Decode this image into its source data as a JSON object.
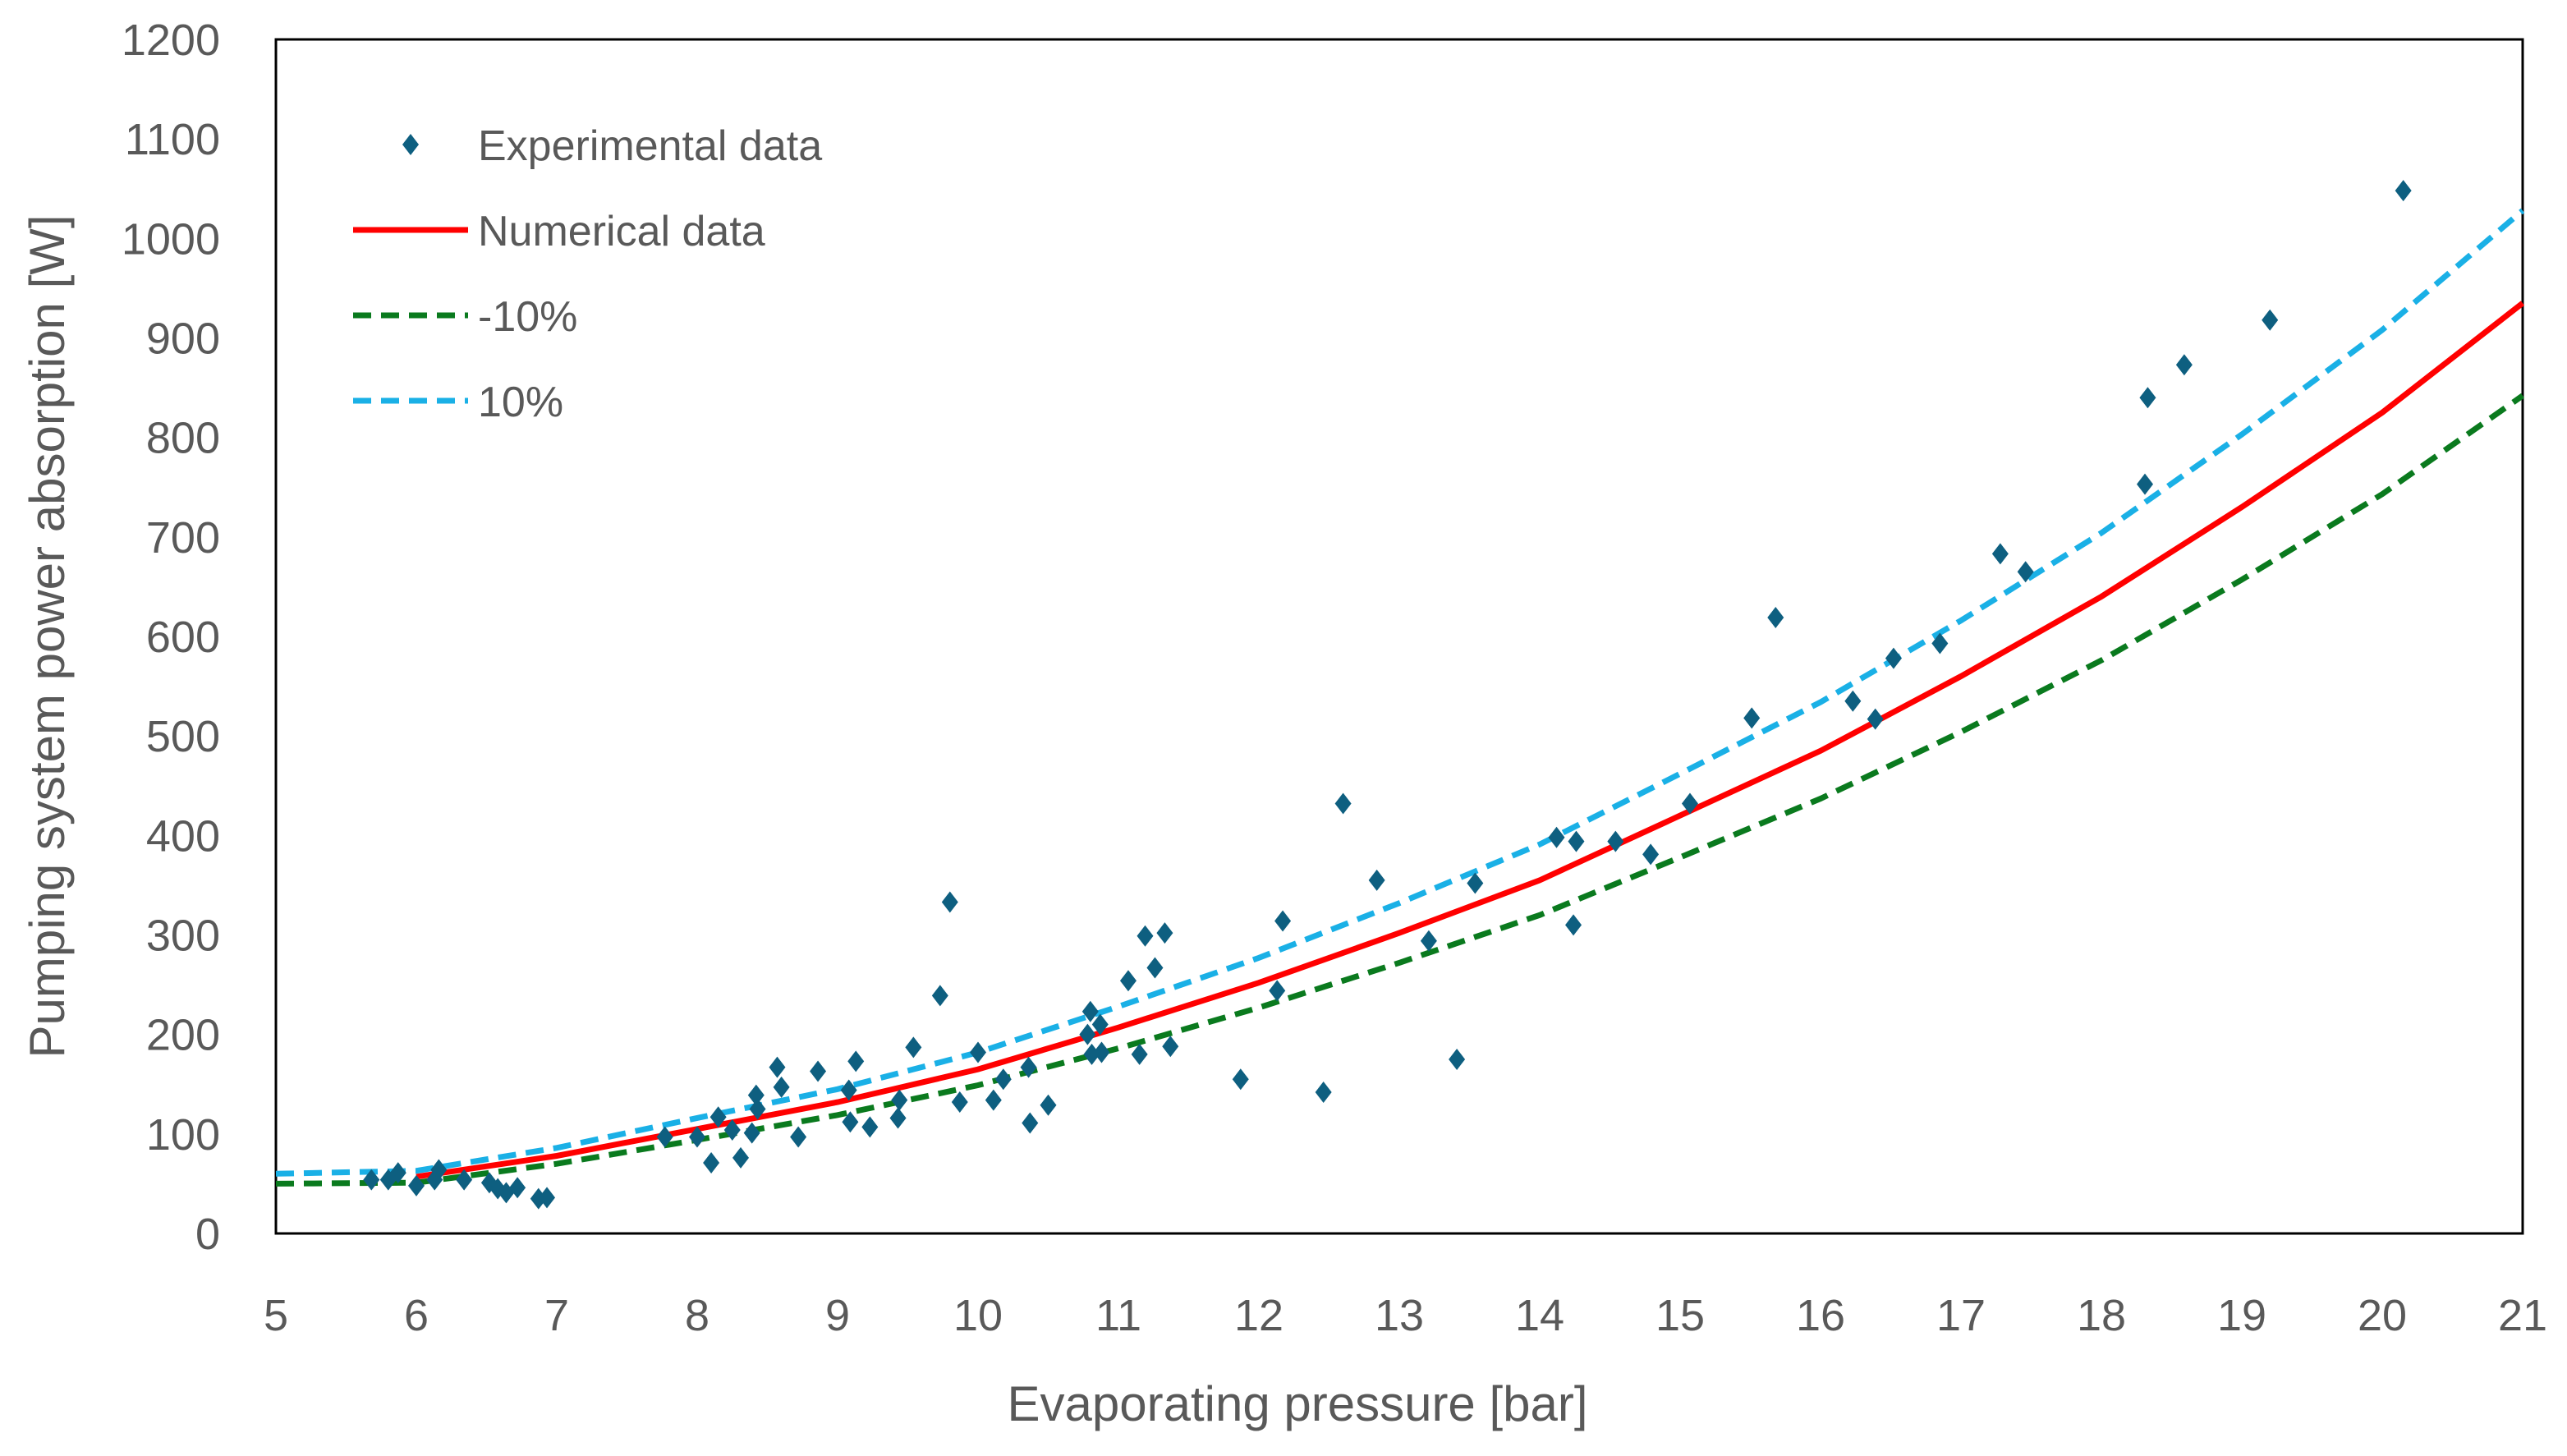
{
  "chart_data": {
    "type": "scatter",
    "title": "",
    "xlabel": "Evaporating pressure [bar]",
    "ylabel": "Pumping system power absorption [W]",
    "xlim": [
      5,
      21
    ],
    "ylim": [
      0,
      1200
    ],
    "xticks": [
      5,
      6,
      7,
      8,
      9,
      10,
      11,
      12,
      13,
      14,
      15,
      16,
      17,
      18,
      19,
      20,
      21
    ],
    "yticks": [
      0,
      100,
      200,
      300,
      400,
      500,
      600,
      700,
      800,
      900,
      1000,
      1100,
      1200
    ],
    "grid": false,
    "legend_placement": "top-left",
    "series": [
      {
        "name": "Experimental data",
        "kind": "scatter",
        "marker": "diamond",
        "color": "#0e5f80",
        "points": [
          [
            5.68,
            54
          ],
          [
            5.8,
            54
          ],
          [
            5.87,
            61
          ],
          [
            6.0,
            48
          ],
          [
            6.13,
            54
          ],
          [
            6.16,
            64
          ],
          [
            6.34,
            54
          ],
          [
            6.52,
            51
          ],
          [
            6.58,
            45
          ],
          [
            6.64,
            41
          ],
          [
            6.72,
            46
          ],
          [
            6.87,
            35
          ],
          [
            6.93,
            36
          ],
          [
            7.77,
            97
          ],
          [
            8.0,
            97
          ],
          [
            8.1,
            71
          ],
          [
            8.15,
            117
          ],
          [
            8.25,
            104
          ],
          [
            8.31,
            76
          ],
          [
            8.42,
            139
          ],
          [
            8.43,
            125
          ],
          [
            8.39,
            101
          ],
          [
            8.57,
            167
          ],
          [
            8.6,
            147
          ],
          [
            8.72,
            97
          ],
          [
            8.86,
            163
          ],
          [
            9.08,
            144
          ],
          [
            9.13,
            173
          ],
          [
            9.09,
            112
          ],
          [
            9.23,
            107
          ],
          [
            9.43,
            116
          ],
          [
            9.44,
            134
          ],
          [
            9.54,
            187
          ],
          [
            9.73,
            239
          ],
          [
            9.8,
            333
          ],
          [
            9.87,
            132
          ],
          [
            10.0,
            182
          ],
          [
            10.11,
            134
          ],
          [
            10.18,
            155
          ],
          [
            10.36,
            167
          ],
          [
            10.37,
            111
          ],
          [
            10.5,
            129
          ],
          [
            10.8,
            223
          ],
          [
            10.78,
            200
          ],
          [
            10.81,
            180
          ],
          [
            10.87,
            210
          ],
          [
            10.88,
            182
          ],
          [
            11.07,
            254
          ],
          [
            11.15,
            180
          ],
          [
            11.19,
            299
          ],
          [
            11.26,
            267
          ],
          [
            11.33,
            302
          ],
          [
            11.37,
            188
          ],
          [
            11.87,
            155
          ],
          [
            12.13,
            244
          ],
          [
            12.17,
            314
          ],
          [
            12.46,
            142
          ],
          [
            12.6,
            432
          ],
          [
            12.84,
            355
          ],
          [
            13.21,
            294
          ],
          [
            13.41,
            175
          ],
          [
            13.54,
            352
          ],
          [
            14.12,
            398
          ],
          [
            14.24,
            310
          ],
          [
            14.26,
            394
          ],
          [
            14.54,
            394
          ],
          [
            14.79,
            381
          ],
          [
            15.07,
            432
          ],
          [
            15.51,
            518
          ],
          [
            15.68,
            619
          ],
          [
            16.23,
            535
          ],
          [
            16.39,
            517
          ],
          [
            16.52,
            578
          ],
          [
            16.85,
            593
          ],
          [
            17.28,
            683
          ],
          [
            17.46,
            665
          ],
          [
            18.31,
            753
          ],
          [
            18.33,
            840
          ],
          [
            18.59,
            873
          ],
          [
            19.2,
            918
          ],
          [
            20.15,
            1048
          ]
        ]
      },
      {
        "name": "Numerical data",
        "kind": "line",
        "dash": "solid",
        "color": "#ff0000",
        "x": [
          6,
          7,
          8,
          9,
          10,
          11,
          12,
          13,
          14,
          15,
          16,
          17,
          18,
          19,
          20,
          21
        ],
        "values": [
          57,
          78,
          105,
          132,
          165,
          207,
          252,
          302,
          355,
          420,
          485,
          560,
          640,
          730,
          825,
          935
        ]
      },
      {
        "name": "-10%",
        "kind": "line",
        "dash": "dashed",
        "color": "#0a7a1e",
        "x": [
          5,
          6,
          7,
          8,
          9,
          10,
          11,
          12,
          13,
          14,
          15,
          16,
          17,
          18,
          19,
          20,
          21
        ],
        "values": [
          50,
          51,
          70,
          94,
          119,
          149,
          186,
          227,
          272,
          320,
          378,
          437,
          504,
          576,
          657,
          743,
          842
        ]
      },
      {
        "name": "10%",
        "kind": "line",
        "dash": "dashed",
        "color": "#1ab0e6",
        "x": [
          5,
          6,
          7,
          8,
          9,
          10,
          11,
          12,
          13,
          14,
          15,
          16,
          17,
          18,
          19,
          20,
          21
        ],
        "values": [
          60,
          63,
          86,
          116,
          145,
          182,
          228,
          277,
          332,
          391,
          462,
          534,
          616,
          704,
          803,
          908,
          1028
        ]
      }
    ]
  }
}
